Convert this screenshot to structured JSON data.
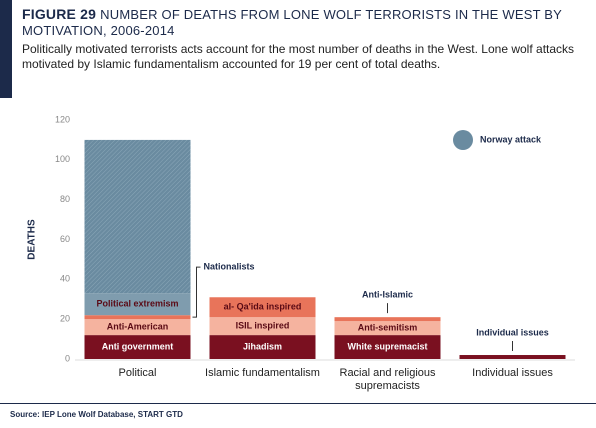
{
  "chart_data": {
    "type": "stacked_bar",
    "figure_label": "FIGURE 29",
    "title": "NUMBER OF DEATHS FROM LONE WOLF TERRORISTS IN THE WEST BY MOTIVATION, 2006-2014",
    "subtitle": "Politically motivated terrorists acts account for the most number of deaths in the West. Lone wolf attacks motivated by Islamic fundamentalism accounted for 19 per cent of total deaths.",
    "y_label": "DEATHS",
    "ylim": [
      0,
      120
    ],
    "yticks": [
      0,
      20,
      40,
      60,
      80,
      100,
      120
    ],
    "categories": [
      "Political",
      "Islamic fundamentalism",
      "Racial and religious supremacists",
      "Individual issues"
    ],
    "stacks": [
      [
        {
          "name": "Anti government",
          "value": 12,
          "color": "#7a1020"
        },
        {
          "name": "Anti-American",
          "value": 8,
          "color": "#f5b39f"
        },
        {
          "name": "Nationalists",
          "value": 2,
          "color": "#e8745a"
        },
        {
          "name": "Political extremism",
          "value": 11,
          "color": "#7f9cae"
        },
        {
          "name": "Norway attack",
          "value": 77,
          "color": "#6a8ba0",
          "in_legend": true
        }
      ],
      [
        {
          "name": "Jihadism",
          "value": 12,
          "color": "#7a1020"
        },
        {
          "name": "ISIL inspired",
          "value": 9,
          "color": "#f5b39f"
        },
        {
          "name": "al- Qa'ida inspired",
          "value": 10,
          "color": "#e8745a"
        }
      ],
      [
        {
          "name": "White supremacist",
          "value": 12,
          "color": "#7a1020"
        },
        {
          "name": "Anti-semitism",
          "value": 7,
          "color": "#f5b39f"
        },
        {
          "name": "Anti-Islamic",
          "value": 2,
          "color": "#e8745a"
        }
      ],
      [
        {
          "name": "Individual issues",
          "value": 2,
          "color": "#7a1020"
        }
      ]
    ],
    "source": "Source: IEP Lone Wolf Database, START GTD"
  }
}
